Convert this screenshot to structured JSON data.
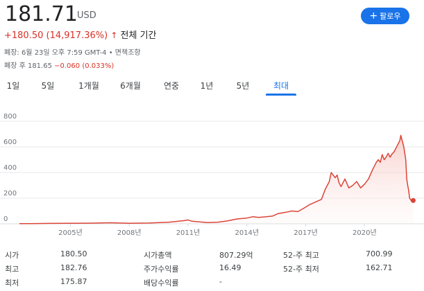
{
  "quote": {
    "price": "181.71",
    "currency": "USD",
    "change": "+180.50 (14,917.36%)",
    "change_arrow": "↑",
    "change_period": "전체 기간",
    "close_info": "폐장: 6월 23일 오후 7:59 GMT-4 • 면책조항",
    "after_hours_label": "폐장 후 181.65",
    "after_hours_change": "−0.060 (0.033%)"
  },
  "follow_button": {
    "icon": "+",
    "label": "팔로우"
  },
  "tabs": [
    {
      "label": "1일"
    },
    {
      "label": "5일"
    },
    {
      "label": "1개월"
    },
    {
      "label": "6개월"
    },
    {
      "label": "연중"
    },
    {
      "label": "1년"
    },
    {
      "label": "5년"
    },
    {
      "label": "최대"
    }
  ],
  "active_tab": "최대",
  "colors": {
    "line": "#db4437",
    "fill": "#fce8e6",
    "accent": "#1a73e8",
    "grid": "#e8eaed"
  },
  "chart_data": {
    "type": "area",
    "y_ticks": [
      "800",
      "600",
      "400",
      "200",
      "0"
    ],
    "y_tick_values": [
      800,
      600,
      400,
      200,
      0
    ],
    "x_ticks": [
      "2005년",
      "2008년",
      "2011년",
      "2014년",
      "2017년",
      "2020년"
    ],
    "x_tick_values": [
      2005,
      2008,
      2011,
      2014,
      2017,
      2020
    ],
    "xlim": [
      2002.4,
      2022.5
    ],
    "ylim": [
      0,
      800
    ],
    "grid": true,
    "series": [
      {
        "values": [
          [
            2002.4,
            1.2
          ],
          [
            2003.0,
            1.5
          ],
          [
            2004.0,
            3
          ],
          [
            2005.0,
            4
          ],
          [
            2006.0,
            5
          ],
          [
            2007.0,
            8
          ],
          [
            2008.0,
            4
          ],
          [
            2009.0,
            6
          ],
          [
            2010.0,
            12
          ],
          [
            2010.8,
            25
          ],
          [
            2011.0,
            30
          ],
          [
            2011.2,
            20
          ],
          [
            2011.6,
            15
          ],
          [
            2012.0,
            10
          ],
          [
            2012.5,
            12
          ],
          [
            2013.0,
            22
          ],
          [
            2013.5,
            38
          ],
          [
            2014.0,
            45
          ],
          [
            2014.3,
            55
          ],
          [
            2014.6,
            50
          ],
          [
            2015.0,
            55
          ],
          [
            2015.3,
            60
          ],
          [
            2015.6,
            80
          ],
          [
            2016.0,
            90
          ],
          [
            2016.3,
            100
          ],
          [
            2016.6,
            95
          ],
          [
            2017.0,
            130
          ],
          [
            2017.2,
            150
          ],
          [
            2017.5,
            170
          ],
          [
            2017.8,
            190
          ],
          [
            2018.0,
            270
          ],
          [
            2018.1,
            300
          ],
          [
            2018.2,
            330
          ],
          [
            2018.3,
            400
          ],
          [
            2018.4,
            380
          ],
          [
            2018.5,
            360
          ],
          [
            2018.6,
            380
          ],
          [
            2018.7,
            320
          ],
          [
            2018.8,
            290
          ],
          [
            2019.0,
            350
          ],
          [
            2019.2,
            280
          ],
          [
            2019.4,
            300
          ],
          [
            2019.6,
            330
          ],
          [
            2019.8,
            280
          ],
          [
            2020.0,
            310
          ],
          [
            2020.2,
            350
          ],
          [
            2020.4,
            420
          ],
          [
            2020.6,
            480
          ],
          [
            2020.7,
            500
          ],
          [
            2020.8,
            480
          ],
          [
            2020.9,
            540
          ],
          [
            2021.0,
            500
          ],
          [
            2021.1,
            520
          ],
          [
            2021.2,
            550
          ],
          [
            2021.3,
            520
          ],
          [
            2021.4,
            545
          ],
          [
            2021.5,
            560
          ],
          [
            2021.6,
            590
          ],
          [
            2021.7,
            620
          ],
          [
            2021.8,
            650
          ],
          [
            2021.85,
            690
          ],
          [
            2021.9,
            660
          ],
          [
            2022.0,
            600
          ],
          [
            2022.1,
            500
          ],
          [
            2022.15,
            350
          ],
          [
            2022.2,
            300
          ],
          [
            2022.25,
            260
          ],
          [
            2022.3,
            200
          ],
          [
            2022.4,
            175
          ],
          [
            2022.48,
            182
          ]
        ]
      }
    ],
    "last_point": [
      2022.48,
      181.71
    ]
  },
  "stats": {
    "col1": [
      {
        "label": "시가",
        "value": "180.50"
      },
      {
        "label": "최고",
        "value": "182.76"
      },
      {
        "label": "최저",
        "value": "175.87"
      }
    ],
    "col2": [
      {
        "label": "시가총액",
        "value": "807.29억"
      },
      {
        "label": "주가수익률",
        "value": "16.49"
      },
      {
        "label": "배당수익률",
        "value": "-"
      }
    ],
    "col3": [
      {
        "label": "52-주 최고",
        "value": "700.99"
      },
      {
        "label": "52-주 최저",
        "value": "162.71"
      }
    ]
  }
}
